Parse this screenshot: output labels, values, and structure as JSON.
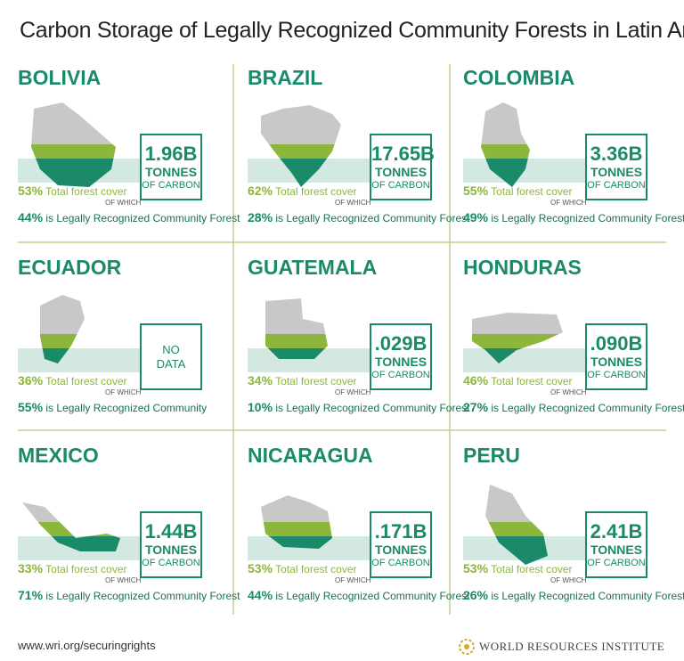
{
  "header": {
    "title": "Carbon Storage of Legally Recognized Community Forests in Latin America"
  },
  "cards": [
    {
      "country": "BOLIVIA",
      "box": [
        "1.96B",
        "TONNES",
        "OF CARBON"
      ],
      "cover_percent": "53%",
      "cover_label": "Total forest cover",
      "of_which": "OF WHICH",
      "community_percent": "44%",
      "community_label": "is Legally Recognized Community Forest"
    },
    {
      "country": "BRAZIL",
      "box": [
        "17.65B",
        "TONNES",
        "OF CARBON"
      ],
      "cover_percent": "62%",
      "cover_label": "Total forest cover",
      "of_which": "OF WHICH",
      "community_percent": "28%",
      "community_label": "is Legally Recognized Community Forest"
    },
    {
      "country": "COLOMBIA",
      "box": [
        "3.36B",
        "TONNES",
        "OF CARBON"
      ],
      "cover_percent": "55%",
      "cover_label": "Total forest cover",
      "of_which": "OF WHICH",
      "community_percent": "49%",
      "community_label": "is Legally Recognized Community Forest"
    },
    {
      "country": "ECUADOR",
      "box": [
        "NO",
        "DATA"
      ],
      "cover_percent": "36%",
      "cover_label": "Total forest cover",
      "of_which": "OF WHICH",
      "community_percent": "55%",
      "community_label": "is Legally Recognized Community"
    },
    {
      "country": "GUATEMALA",
      "box": [
        ".029B",
        "TONNES",
        "OF CARBON"
      ],
      "cover_percent": "34%",
      "cover_label": "Total forest cover",
      "of_which": "OF WHICH",
      "community_percent": "10%",
      "community_label": "is Legally Recognized Community Forest"
    },
    {
      "country": "HONDURAS",
      "box": [
        ".090B",
        "TONNES",
        "OF CARBON"
      ],
      "cover_percent": "46%",
      "cover_label": "Total forest cover",
      "of_which": "OF WHICH",
      "community_percent": "27%",
      "community_label": "is Legally Recognized Community Forest"
    },
    {
      "country": "MEXICO",
      "box": [
        "1.44B",
        "TONNES",
        "OF CARBON"
      ],
      "cover_percent": "33%",
      "cover_label": "Total forest cover",
      "of_which": "OF WHICH",
      "community_percent": "71%",
      "community_label": "is Legally Recognized Community Forest"
    },
    {
      "country": "NICARAGUA",
      "box": [
        ".171B",
        "TONNES",
        "OF CARBON"
      ],
      "cover_percent": "53%",
      "cover_label": "Total forest cover",
      "of_which": "OF WHICH",
      "community_percent": "44%",
      "community_label": "is Legally Recognized Community Forest"
    },
    {
      "country": "PERU",
      "box": [
        "2.41B",
        "TONNES",
        "OF CARBON"
      ],
      "cover_percent": "53%",
      "cover_label": "Total forest cover",
      "of_which": "OF WHICH",
      "community_percent": "26%",
      "community_label": "is Legally Recognized Community Forest"
    }
  ],
  "footer": {
    "url": "www.wri.org/securingrights",
    "org": "WORLD RESOURCES INSTITUTE"
  }
}
